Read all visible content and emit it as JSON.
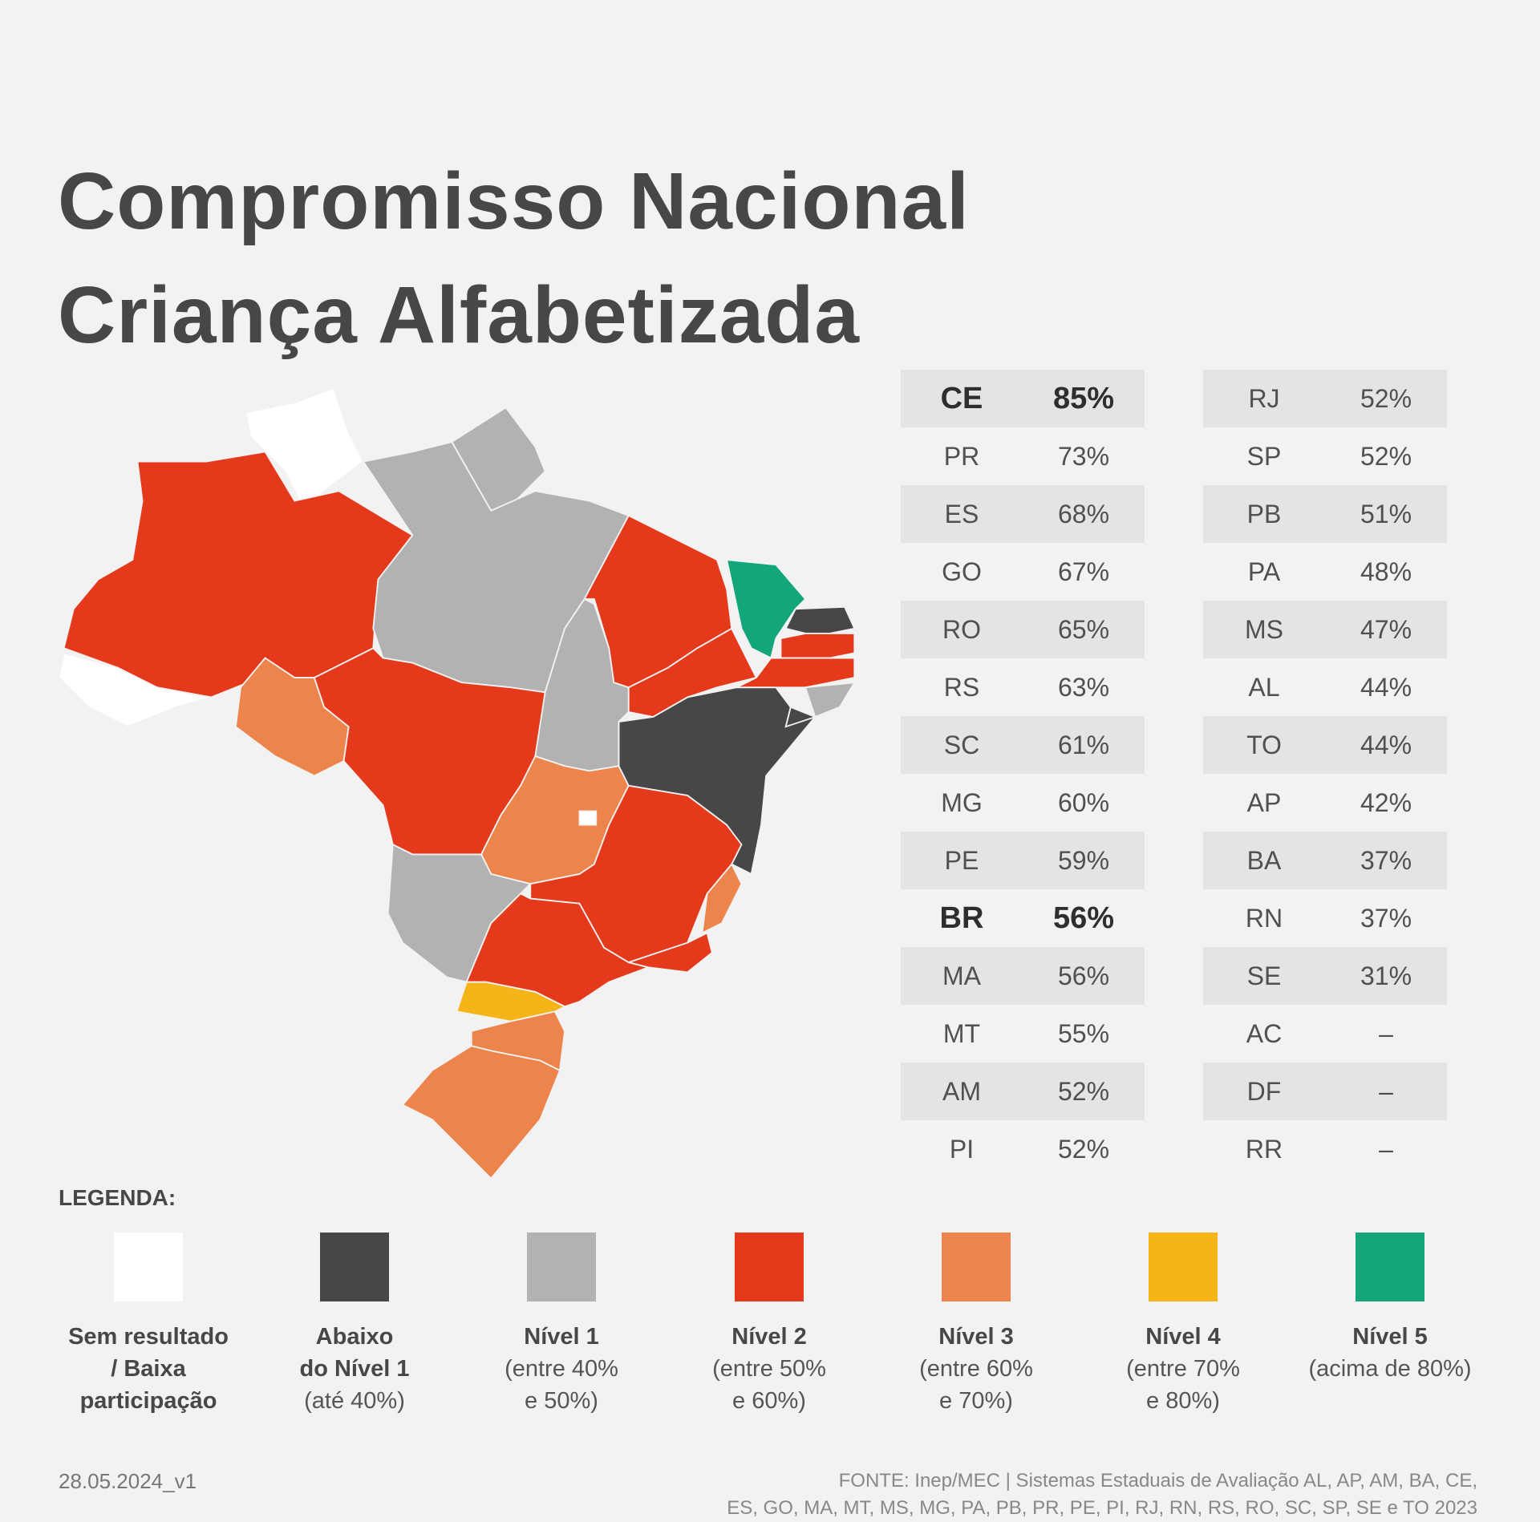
{
  "title": {
    "line1": "Compromisso Nacional",
    "line2": "Criança Alfabetizada"
  },
  "colors": {
    "sem_resultado": "#ffffff",
    "abaixo": "#474747",
    "nivel1": "#b2b2b2",
    "nivel2": "#e5391b",
    "nivel3": "#ec844b",
    "nivel4": "#f5b418",
    "nivel5": "#12a67a"
  },
  "chart_data": {
    "type": "choropleth-map-table",
    "title": "Compromisso Nacional Criança Alfabetizada",
    "table_left": [
      {
        "state": "CE",
        "value": "85%",
        "level": "nivel5",
        "bold": true
      },
      {
        "state": "PR",
        "value": "73%",
        "level": "nivel4"
      },
      {
        "state": "ES",
        "value": "68%",
        "level": "nivel3"
      },
      {
        "state": "GO",
        "value": "67%",
        "level": "nivel3"
      },
      {
        "state": "RO",
        "value": "65%",
        "level": "nivel3"
      },
      {
        "state": "RS",
        "value": "63%",
        "level": "nivel3"
      },
      {
        "state": "SC",
        "value": "61%",
        "level": "nivel3"
      },
      {
        "state": "MG",
        "value": "60%",
        "level": "nivel2"
      },
      {
        "state": "PE",
        "value": "59%",
        "level": "nivel2"
      },
      {
        "state": "BR",
        "value": "56%",
        "level": "nivel2",
        "bold": true
      },
      {
        "state": "MA",
        "value": "56%",
        "level": "nivel2"
      },
      {
        "state": "MT",
        "value": "55%",
        "level": "nivel2"
      },
      {
        "state": "AM",
        "value": "52%",
        "level": "nivel2"
      },
      {
        "state": "PI",
        "value": "52%",
        "level": "nivel2"
      }
    ],
    "table_right": [
      {
        "state": "RJ",
        "value": "52%",
        "level": "nivel2"
      },
      {
        "state": "SP",
        "value": "52%",
        "level": "nivel2"
      },
      {
        "state": "PB",
        "value": "51%",
        "level": "nivel2"
      },
      {
        "state": "PA",
        "value": "48%",
        "level": "nivel1"
      },
      {
        "state": "MS",
        "value": "47%",
        "level": "nivel1"
      },
      {
        "state": "AL",
        "value": "44%",
        "level": "nivel1"
      },
      {
        "state": "TO",
        "value": "44%",
        "level": "nivel1"
      },
      {
        "state": "AP",
        "value": "42%",
        "level": "nivel1"
      },
      {
        "state": "BA",
        "value": "37%",
        "level": "abaixo"
      },
      {
        "state": "RN",
        "value": "37%",
        "level": "abaixo"
      },
      {
        "state": "SE",
        "value": "31%",
        "level": "abaixo"
      },
      {
        "state": "AC",
        "value": "–",
        "level": "sem_resultado"
      },
      {
        "state": "DF",
        "value": "–",
        "level": "sem_resultado"
      },
      {
        "state": "RR",
        "value": "–",
        "level": "sem_resultado"
      }
    ]
  },
  "legend": {
    "title": "LEGENDA:",
    "items": [
      {
        "key": "sem_resultado",
        "head": "Sem resultado",
        "sub1": "/ Baixa",
        "sub2": "participação",
        "sub_bold": true
      },
      {
        "key": "abaixo",
        "head": "Abaixo",
        "sub1": "do Nível 1",
        "sub2": "(até 40%)",
        "sub1_bold": true
      },
      {
        "key": "nivel1",
        "head": "Nível 1",
        "sub1": "(entre 40%",
        "sub2": "e 50%)"
      },
      {
        "key": "nivel2",
        "head": "Nível 2",
        "sub1": "(entre 50%",
        "sub2": "e 60%)"
      },
      {
        "key": "nivel3",
        "head": "Nível 3",
        "sub1": "(entre 60%",
        "sub2": "e 70%)"
      },
      {
        "key": "nivel4",
        "head": "Nível 4",
        "sub1": "(entre 70%",
        "sub2": "e 80%)"
      },
      {
        "key": "nivel5",
        "head": "Nível 5",
        "sub1": "(acima de 80%)",
        "sub2": ""
      }
    ]
  },
  "footer": {
    "date": "28.05.2024_v1",
    "source_line1": "FONTE: Inep/MEC | Sistemas Estaduais de Avaliação AL, AP, AM, BA, CE,",
    "source_line2": "ES, GO, MA, MT, MS, MG, PA, PB, PR, PE, PI, RJ, RN, RS, RO, SC, SP, SE e TO 2023"
  }
}
